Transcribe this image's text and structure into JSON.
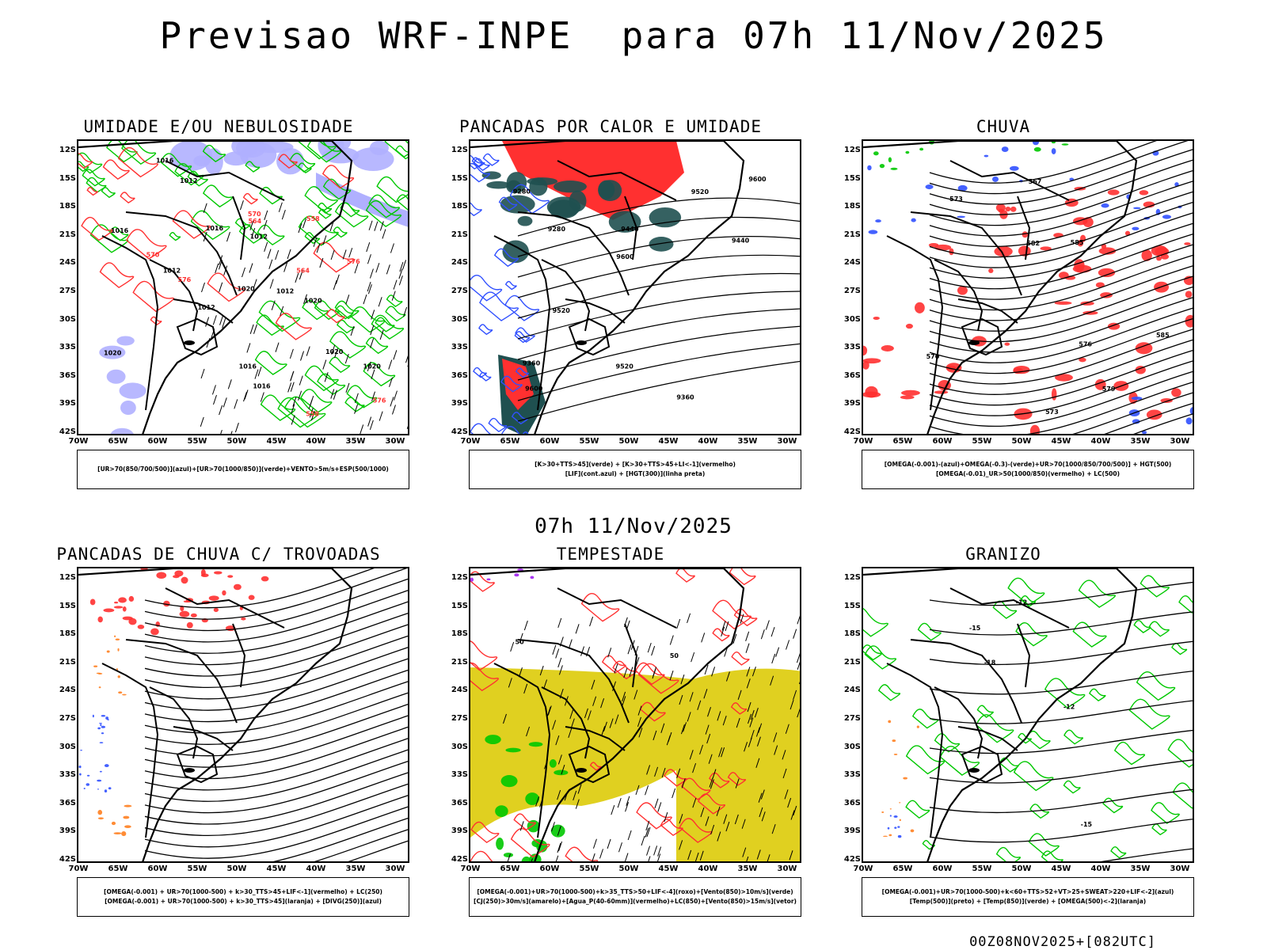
{
  "title": "Previsao WRF-INPE  para 07h 11/Nov/2025",
  "mid_title": "07h 11/Nov/2025",
  "footer": "00Z08NOV2025+[082UTC]",
  "lat_ticks": [
    "12S",
    "15S",
    "18S",
    "21S",
    "24S",
    "27S",
    "30S",
    "33S",
    "36S",
    "39S",
    "42S"
  ],
  "lon_ticks": [
    "70W",
    "65W",
    "60W",
    "55W",
    "50W",
    "45W",
    "40W",
    "35W",
    "30W"
  ],
  "colors": {
    "blue": "#3050ff",
    "green": "#00c800",
    "red": "#ff3030",
    "dark_teal": "#1f5050",
    "yellow": "#e0d020",
    "orange": "#ff8020",
    "purple": "#a020f0",
    "lavender": "#b0b0ff"
  },
  "panels": [
    {
      "title": "UMIDADE E/OU NEBULOSIDADE",
      "legend": [
        "[UR>70(850/700/500)](azul)+[UR>70(1000/850)](verde)+VENTO>5m/s+ESP(500/1000)"
      ],
      "labels": [
        "1012",
        "1012",
        "1016",
        "1016",
        "1020",
        "1016",
        "1012",
        "1016",
        "1020",
        "1012",
        "1020",
        "1016",
        "1020",
        "1020",
        "1012",
        "576",
        "576",
        "570",
        "564",
        "558",
        "564",
        "558",
        "570",
        "576"
      ]
    },
    {
      "title": "PANCADAS POR CALOR E UMIDADE",
      "legend": [
        "[K>30+TTS>45](verde) + [K>30+TTS>45+LI<-1](vermelho)",
        "[LIF](cont.azul) + [HGT(300)](linha preta)"
      ],
      "labels": [
        "9600",
        "9600",
        "9520",
        "9600",
        "9520",
        "9520",
        "9440",
        "9440",
        "9360",
        "9360",
        "9280",
        "9280"
      ]
    },
    {
      "title": "CHUVA",
      "legend": [
        "[OMEGA(-0.001)-(azul)+OMEGA(-0.3)-(verde)+UR>70(1000/850/700/500)] + HGT(500)",
        "[OMEGA(-0.01)_UR>50(1000/850)(vermelho) + LC(500)"
      ],
      "labels": [
        "585",
        "585",
        "582",
        "579",
        "576",
        "573",
        "573",
        "570",
        "567"
      ]
    },
    {
      "title": "PANCADAS DE CHUVA C/ TROVOADAS",
      "legend": [
        "[OMEGA(-0.001) + UR>70(1000-500) + k>30_TTS>45+LIF<-1](vermelho) + LC(250)",
        "[OMEGA(-0.001) + UR>70(1000-500) + k>30_TTS>45](laranja) + [DIVG(250)](azul)"
      ],
      "labels": []
    },
    {
      "title": "TEMPESTADE",
      "legend": [
        "[OMEGA(-0.001)+UR>70(1000-500)+k>35_TTS>50+LIF<-4](roxo)+[Vento(850)>10m/s](verde)",
        "[CJ(250)>30m/s](amarelo)+[Agua_P(40-60mm)](vermelho)+LC(850)+[Vento(850)>15m/s](vetor)"
      ],
      "labels": [
        "50",
        "50"
      ]
    },
    {
      "title": "GRANIZO",
      "legend": [
        "[OMEGA(-0.001)+UR>70(1000-500)+k<60+TTS>52+VT>25+SWEAT>220+LIF<-2](azul)",
        "[Temp(500)](preto) + [Temp(850)](verde) + [OMEGA(500)<-2](laranja)"
      ],
      "labels": [
        "-12",
        "-15",
        "-15",
        "-18",
        "-12"
      ]
    }
  ]
}
